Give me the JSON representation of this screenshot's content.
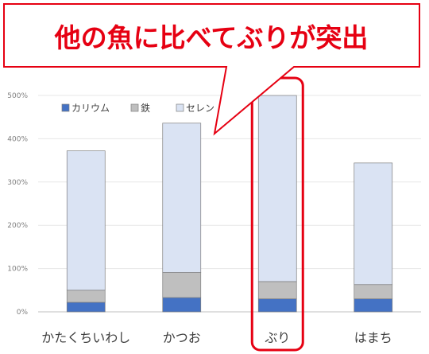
{
  "chart_data": {
    "type": "bar",
    "stacked": true,
    "categories": [
      "かたくちいわし",
      "かつお",
      "ぶり",
      "はまち"
    ],
    "series": [
      {
        "name": "カリウム",
        "values": [
          22,
          33,
          30,
          30
        ],
        "color": "#4472c4"
      },
      {
        "name": "鉄",
        "values": [
          28,
          58,
          40,
          33
        ],
        "color": "#bfbfbf"
      },
      {
        "name": "セレン",
        "values": [
          322,
          345,
          430,
          281
        ],
        "color": "#dae3f3"
      }
    ],
    "yticks": [
      "0%",
      "100%",
      "200%",
      "300%",
      "400%",
      "500%"
    ],
    "ylim": [
      0,
      500
    ],
    "legend_position": "top-left",
    "highlight_category": "ぶり",
    "highlight_color": "#e60012"
  },
  "callout": {
    "text": "他の魚に比べてぶりが突出"
  }
}
